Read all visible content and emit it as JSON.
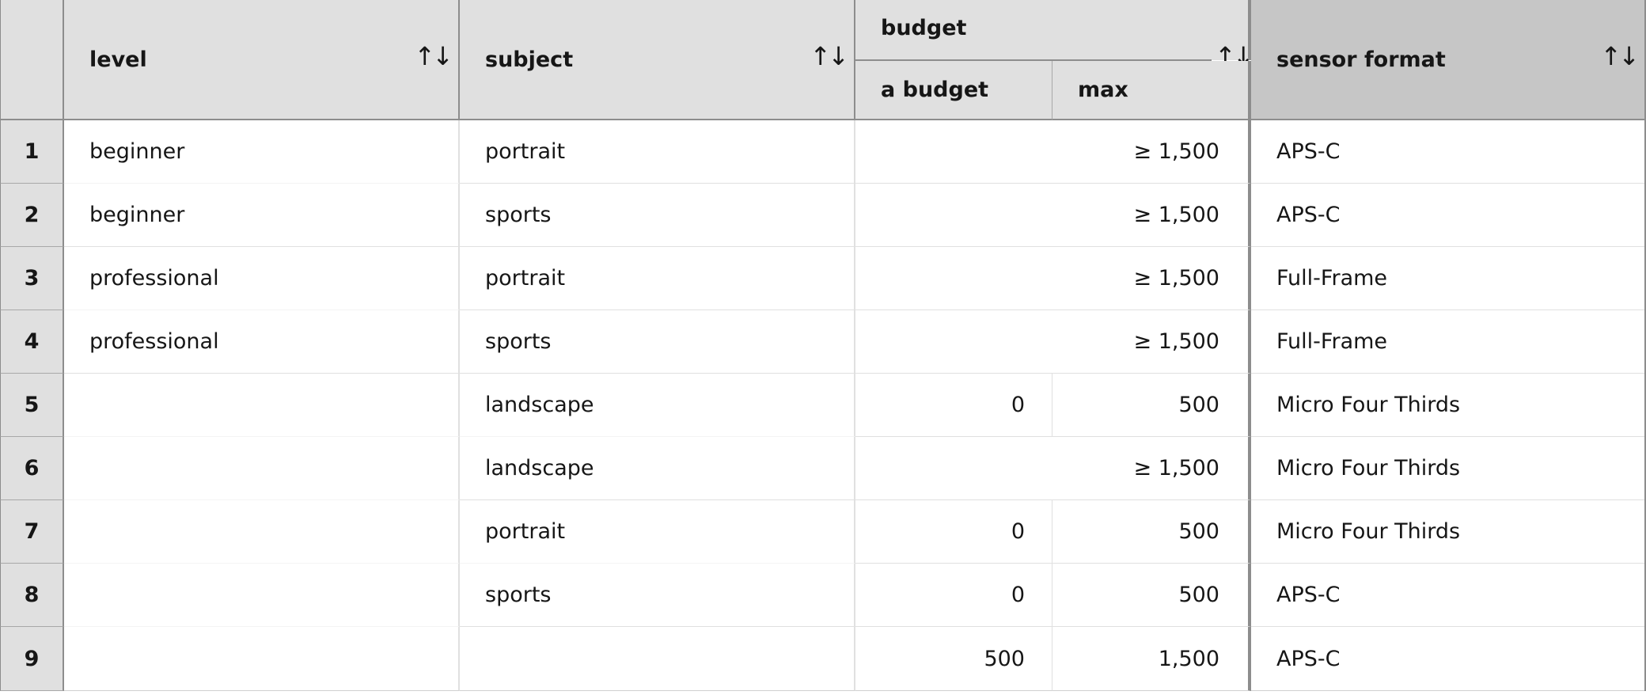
{
  "table": {
    "headers": {
      "level": "level",
      "subject": "subject",
      "budget": "budget",
      "a_budget": "a budget",
      "max": "max",
      "sensor_format": "sensor format",
      "sort_icon": "↑↓"
    },
    "rows": [
      {
        "num": "1",
        "level": "beginner",
        "subject": "portrait",
        "budget_range": "≥ 1,500",
        "sensor": "APS-C"
      },
      {
        "num": "2",
        "level": "beginner",
        "subject": "sports",
        "budget_range": "≥ 1,500",
        "sensor": "APS-C"
      },
      {
        "num": "3",
        "level": "professional",
        "subject": "portrait",
        "budget_range": "≥ 1,500",
        "sensor": "Full-Frame"
      },
      {
        "num": "4",
        "level": "professional",
        "subject": "sports",
        "budget_range": "≥ 1,500",
        "sensor": "Full-Frame"
      },
      {
        "num": "5",
        "level": "",
        "subject": "landscape",
        "budget_min": "0",
        "budget_max": "500",
        "sensor": "Micro Four Thirds"
      },
      {
        "num": "6",
        "level": "",
        "subject": "landscape",
        "budget_range": "≥ 1,500",
        "sensor": "Micro Four Thirds"
      },
      {
        "num": "7",
        "level": "",
        "subject": "portrait",
        "budget_min": "0",
        "budget_max": "500",
        "sensor": "Micro Four Thirds"
      },
      {
        "num": "8",
        "level": "",
        "subject": "sports",
        "budget_min": "0",
        "budget_max": "500",
        "sensor": "APS-C"
      },
      {
        "num": "9",
        "level": "",
        "subject": "",
        "budget_min": "500",
        "budget_max": "1,500",
        "sensor": "APS-C"
      }
    ]
  }
}
